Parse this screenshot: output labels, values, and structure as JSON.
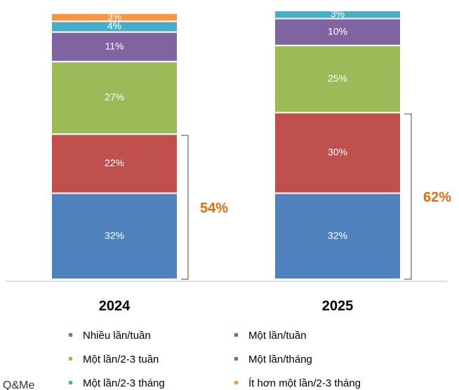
{
  "chart_data": {
    "type": "stacked-bar",
    "categories": [
      "2024",
      "2025"
    ],
    "series": [
      {
        "name": "Nhiều lần/tuần",
        "color": "#4f81bd",
        "values": [
          32,
          32
        ]
      },
      {
        "name": "Một lần/tuần",
        "color": "#c0504d",
        "values": [
          22,
          30
        ]
      },
      {
        "name": "Một lần/2-3 tuần",
        "color": "#9bbb59",
        "values": [
          27,
          25
        ]
      },
      {
        "name": "Một lần/tháng",
        "color": "#8064a2",
        "values": [
          11,
          10
        ]
      },
      {
        "name": "Một lần/2-3 tháng",
        "color": "#4bacc6",
        "values": [
          4,
          3
        ]
      },
      {
        "name": "Ít hơn một lần/2-3 tháng",
        "color": "#f79646",
        "values": [
          3,
          null
        ]
      }
    ],
    "value_labels": [
      [
        "32%",
        "32%"
      ],
      [
        "22%",
        "30%"
      ],
      [
        "27%",
        "25%"
      ],
      [
        "11%",
        "10%"
      ],
      [
        "4%",
        "3%"
      ],
      [
        "3%",
        null
      ]
    ],
    "annotations": [
      "54%",
      "62%"
    ],
    "annotation_color": "#e46c0a",
    "ylim": [
      0,
      100
    ],
    "logo": "Q&Me"
  }
}
